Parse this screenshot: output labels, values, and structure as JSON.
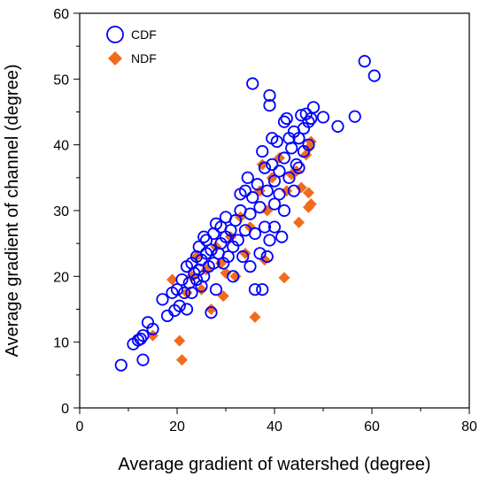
{
  "chart_data": {
    "type": "scatter",
    "title": "",
    "xlabel": "Average gradient of watershed (degree)",
    "ylabel": "Average gradient of channel (degree)",
    "xlim": [
      0,
      80
    ],
    "ylim": [
      0,
      60
    ],
    "xticks": [
      "0",
      "20",
      "40",
      "60",
      "80"
    ],
    "yticks": [
      "0",
      "10",
      "20",
      "30",
      "40",
      "50",
      "60"
    ],
    "grid": false,
    "legend_position": "top-left",
    "series": [
      {
        "name": "CDF",
        "marker": "open-circle",
        "color": "#0000ff",
        "points": [
          [
            8.5,
            6.5
          ],
          [
            11,
            9.7
          ],
          [
            12,
            10.3
          ],
          [
            13,
            11
          ],
          [
            12.5,
            10.5
          ],
          [
            13,
            7.3
          ],
          [
            14,
            13
          ],
          [
            15,
            12
          ],
          [
            17,
            16.5
          ],
          [
            18,
            14
          ],
          [
            19,
            17.5
          ],
          [
            19.5,
            14.8
          ],
          [
            20,
            18
          ],
          [
            20.5,
            15.5
          ],
          [
            21,
            19.5
          ],
          [
            21.5,
            17.5
          ],
          [
            22,
            15
          ],
          [
            22,
            21.5
          ],
          [
            22.5,
            19
          ],
          [
            23,
            22
          ],
          [
            23,
            17.5
          ],
          [
            23.5,
            20.5
          ],
          [
            24,
            23
          ],
          [
            24,
            19.5
          ],
          [
            24.5,
            24.5
          ],
          [
            24.5,
            21
          ],
          [
            25,
            22.5
          ],
          [
            25,
            18.5
          ],
          [
            25.5,
            26
          ],
          [
            25.5,
            20
          ],
          [
            26,
            23.5
          ],
          [
            26,
            25.5
          ],
          [
            26.5,
            21.5
          ],
          [
            27,
            24
          ],
          [
            27,
            14.5
          ],
          [
            27.5,
            26.5
          ],
          [
            27.5,
            22
          ],
          [
            28,
            28
          ],
          [
            28,
            18
          ],
          [
            28.5,
            23.5
          ],
          [
            29,
            25
          ],
          [
            29,
            27.5
          ],
          [
            29.5,
            22
          ],
          [
            30,
            26
          ],
          [
            30,
            29
          ],
          [
            30.5,
            23
          ],
          [
            31,
            27
          ],
          [
            31.5,
            24.5
          ],
          [
            31.5,
            20
          ],
          [
            32,
            28.5
          ],
          [
            32.5,
            25.5
          ],
          [
            33,
            30
          ],
          [
            33,
            32.5
          ],
          [
            33.5,
            23
          ],
          [
            34,
            27
          ],
          [
            34,
            33
          ],
          [
            34.5,
            35
          ],
          [
            35,
            29.5
          ],
          [
            35,
            21.5
          ],
          [
            35.5,
            49.3
          ],
          [
            35.5,
            32
          ],
          [
            36,
            26.5
          ],
          [
            36,
            18
          ],
          [
            36.5,
            34
          ],
          [
            37,
            30.5
          ],
          [
            37,
            23.5
          ],
          [
            37.5,
            18
          ],
          [
            37.5,
            39
          ],
          [
            38,
            36.5
          ],
          [
            38,
            27.5
          ],
          [
            38.5,
            33
          ],
          [
            38.5,
            23
          ],
          [
            39,
            46
          ],
          [
            39,
            47.5
          ],
          [
            39,
            25.5
          ],
          [
            39.5,
            41
          ],
          [
            39.5,
            37
          ],
          [
            40,
            31
          ],
          [
            40,
            34.5
          ],
          [
            40,
            27.5
          ],
          [
            40.5,
            40.5
          ],
          [
            41,
            36
          ],
          [
            41,
            32.5
          ],
          [
            41.5,
            26
          ],
          [
            42,
            43.5
          ],
          [
            42,
            38
          ],
          [
            42,
            30
          ],
          [
            42.5,
            44
          ],
          [
            43,
            41
          ],
          [
            43,
            35
          ],
          [
            43.5,
            39.5
          ],
          [
            44,
            42
          ],
          [
            44,
            33
          ],
          [
            44.5,
            37
          ],
          [
            45,
            41
          ],
          [
            45,
            36.5
          ],
          [
            45.5,
            44.5
          ],
          [
            46,
            42.5
          ],
          [
            46,
            39
          ],
          [
            46.5,
            44.7
          ],
          [
            47,
            43.5
          ],
          [
            47,
            40
          ],
          [
            47.5,
            44
          ],
          [
            48,
            45.7
          ],
          [
            50,
            44.2
          ],
          [
            53,
            42.8
          ],
          [
            56.5,
            44.3
          ],
          [
            58.5,
            52.7
          ],
          [
            60.5,
            50.5
          ]
        ]
      },
      {
        "name": "NDF",
        "marker": "filled-diamond",
        "color": "#f26b1d",
        "points": [
          [
            15,
            11
          ],
          [
            19,
            19.5
          ],
          [
            20.5,
            10.2
          ],
          [
            21,
            7.3
          ],
          [
            22,
            17.5
          ],
          [
            23,
            20
          ],
          [
            24,
            23
          ],
          [
            25,
            18
          ],
          [
            26,
            21
          ],
          [
            27,
            15
          ],
          [
            28,
            24.5
          ],
          [
            29,
            22
          ],
          [
            29.5,
            17
          ],
          [
            30,
            20.5
          ],
          [
            31,
            26
          ],
          [
            32,
            20
          ],
          [
            33,
            29
          ],
          [
            34,
            23.5
          ],
          [
            35,
            27.5
          ],
          [
            36,
            13.8
          ],
          [
            37,
            33
          ],
          [
            37.5,
            37
          ],
          [
            38,
            22.5
          ],
          [
            38.5,
            30
          ],
          [
            39.5,
            35
          ],
          [
            41,
            38
          ],
          [
            42,
            19.8
          ],
          [
            42.5,
            33
          ],
          [
            43.5,
            35.5
          ],
          [
            44.5,
            36
          ],
          [
            45,
            28.2
          ],
          [
            45.5,
            33.5
          ],
          [
            46.5,
            38.5
          ],
          [
            47,
            30.5
          ],
          [
            47,
            32.7
          ],
          [
            47,
            39.5
          ],
          [
            47.5,
            40.5
          ],
          [
            47.5,
            31
          ]
        ]
      }
    ]
  }
}
